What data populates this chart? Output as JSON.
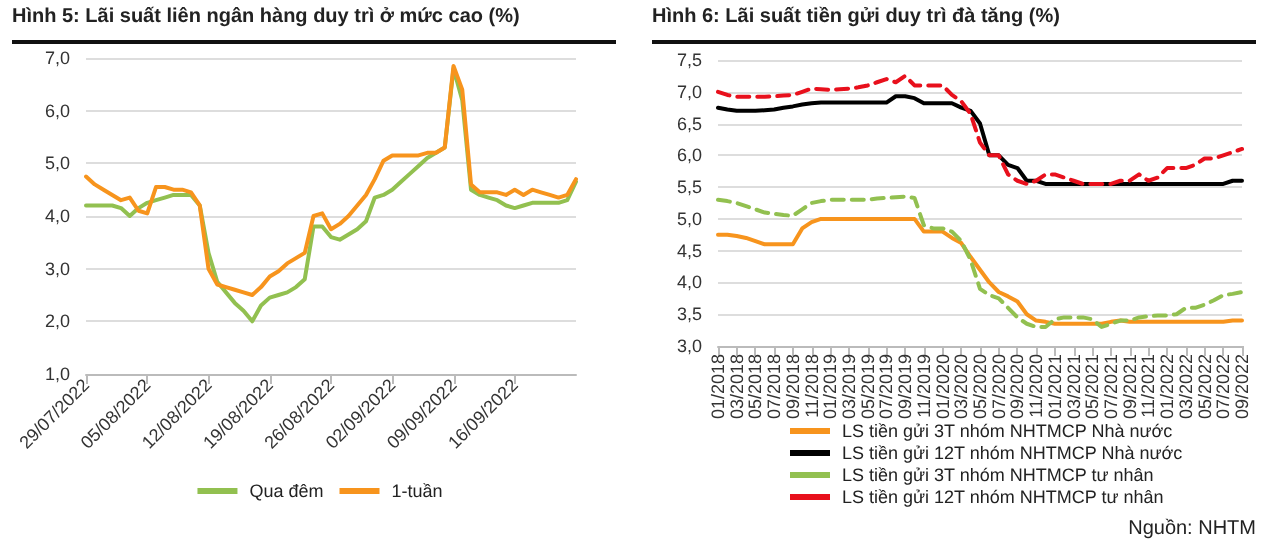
{
  "chart_data": [
    {
      "type": "line",
      "title": "Hình 5: Lãi suất liên ngân hàng duy trì ở mức cao (%)",
      "categories": [
        "29/07/2022",
        null,
        null,
        null,
        null,
        null,
        null,
        "05/08/2022",
        null,
        null,
        null,
        null,
        null,
        null,
        "12/08/2022",
        null,
        null,
        null,
        null,
        null,
        null,
        "19/08/2022",
        null,
        null,
        null,
        null,
        null,
        null,
        "26/08/2022",
        null,
        null,
        null,
        null,
        null,
        null,
        "02/09/2022",
        null,
        null,
        null,
        null,
        null,
        null,
        "09/09/2022",
        null,
        null,
        null,
        null,
        null,
        null,
        "16/09/2022",
        null,
        null,
        null,
        null,
        null,
        null,
        null
      ],
      "series": [
        {
          "name": "Qua đêm",
          "color": "#92c050",
          "values": [
            4.2,
            4.2,
            4.2,
            4.2,
            4.15,
            4.0,
            4.15,
            4.25,
            4.3,
            4.35,
            4.4,
            4.4,
            4.4,
            4.2,
            3.3,
            2.75,
            2.55,
            2.35,
            2.2,
            2.0,
            2.3,
            2.45,
            2.5,
            2.55,
            2.65,
            2.8,
            3.8,
            3.8,
            3.6,
            3.55,
            3.65,
            3.75,
            3.9,
            4.35,
            4.4,
            4.5,
            4.65,
            4.8,
            4.95,
            5.1,
            5.2,
            5.3,
            6.8,
            6.2,
            4.5,
            4.4,
            4.35,
            4.3,
            4.2,
            4.15,
            4.2,
            4.25,
            4.25,
            4.25,
            4.25,
            4.3,
            4.65
          ]
        },
        {
          "name": "1-tuần",
          "color": "#f7941d",
          "values": [
            4.75,
            4.6,
            4.5,
            4.4,
            4.3,
            4.35,
            4.1,
            4.05,
            4.55,
            4.55,
            4.5,
            4.5,
            4.45,
            4.2,
            3.0,
            2.7,
            2.65,
            2.6,
            2.55,
            2.5,
            2.65,
            2.85,
            2.95,
            3.1,
            3.2,
            3.3,
            4.0,
            4.05,
            3.75,
            3.85,
            4.0,
            4.2,
            4.4,
            4.7,
            5.05,
            5.15,
            5.15,
            5.15,
            5.15,
            5.2,
            5.2,
            5.3,
            6.85,
            6.4,
            4.6,
            4.45,
            4.45,
            4.45,
            4.4,
            4.5,
            4.4,
            4.5,
            4.45,
            4.4,
            4.35,
            4.4,
            4.7
          ]
        }
      ],
      "ylim": [
        1,
        7
      ],
      "yticks": [
        {
          "value": 1,
          "label": "1,0"
        },
        {
          "value": 2,
          "label": "2,0"
        },
        {
          "value": 3,
          "label": "3,0"
        },
        {
          "value": 4,
          "label": "4,0"
        },
        {
          "value": 5,
          "label": "5,0"
        },
        {
          "value": 6,
          "label": "6,0"
        },
        {
          "value": 7,
          "label": "7,0"
        }
      ],
      "grid": "y",
      "legend": "bottom",
      "marker": "none",
      "line_style": "solid"
    },
    {
      "type": "line",
      "title": "Hình 6: Lãi suất tiền gửi duy trì đà tăng (%)",
      "categories": [
        "01/2018",
        null,
        "03/2018",
        null,
        "05/2018",
        null,
        "07/2018",
        null,
        "09/2018",
        null,
        "11/2018",
        null,
        "01/2019",
        null,
        "03/2019",
        null,
        "05/2019",
        null,
        "07/2019",
        null,
        "09/2019",
        null,
        "11/2019",
        null,
        "01/2020",
        null,
        "03/2020",
        null,
        "05/2020",
        null,
        "07/2020",
        null,
        "09/2020",
        null,
        "11/2020",
        null,
        "01/2021",
        null,
        "03/2021",
        null,
        "05/2021",
        null,
        "07/2021",
        null,
        "09/2021",
        null,
        "11/2021",
        null,
        "01/2022",
        null,
        "03/2022",
        null,
        "05/2022",
        null,
        "07/2022",
        null,
        "09/2022"
      ],
      "series": [
        {
          "name": "LS tiền gửi 3T nhóm NHTMCP Nhà nước",
          "color": "#f7941d",
          "line_style": "solid",
          "values": [
            4.75,
            4.75,
            4.73,
            4.7,
            4.65,
            4.6,
            4.6,
            4.6,
            4.6,
            4.85,
            4.95,
            5.0,
            5.0,
            5.0,
            5.0,
            5.0,
            5.0,
            5.0,
            5.0,
            5.0,
            5.0,
            5.0,
            4.8,
            4.8,
            4.8,
            4.7,
            4.62,
            4.4,
            4.2,
            4.0,
            3.85,
            3.78,
            3.7,
            3.5,
            3.4,
            3.38,
            3.35,
            3.35,
            3.35,
            3.35,
            3.35,
            3.35,
            3.38,
            3.4,
            3.38,
            3.38,
            3.38,
            3.38,
            3.38,
            3.38,
            3.38,
            3.38,
            3.38,
            3.38,
            3.38,
            3.4,
            3.4
          ]
        },
        {
          "name": "LS tiền gửi 12T nhóm NHTMCP Nhà nước",
          "color": "#000000",
          "line_style": "solid",
          "values": [
            6.75,
            6.72,
            6.7,
            6.7,
            6.7,
            6.71,
            6.72,
            6.75,
            6.77,
            6.8,
            6.82,
            6.83,
            6.83,
            6.83,
            6.83,
            6.83,
            6.83,
            6.83,
            6.83,
            6.93,
            6.93,
            6.9,
            6.82,
            6.82,
            6.82,
            6.82,
            6.75,
            6.7,
            6.5,
            6.0,
            6.0,
            5.85,
            5.8,
            5.6,
            5.6,
            5.55,
            5.55,
            5.55,
            5.55,
            5.55,
            5.55,
            5.55,
            5.55,
            5.55,
            5.55,
            5.55,
            5.55,
            5.55,
            5.55,
            5.55,
            5.55,
            5.55,
            5.55,
            5.55,
            5.55,
            5.6,
            5.6
          ]
        },
        {
          "name": "LS tiền gửi 3T nhóm NHTMCP tư nhân",
          "color": "#92c050",
          "line_style": "dashed",
          "values": [
            5.3,
            5.28,
            5.25,
            5.2,
            5.15,
            5.1,
            5.08,
            5.06,
            5.05,
            5.15,
            5.25,
            5.28,
            5.3,
            5.3,
            5.3,
            5.3,
            5.3,
            5.32,
            5.33,
            5.34,
            5.35,
            5.33,
            4.9,
            4.85,
            4.85,
            4.8,
            4.65,
            4.35,
            3.9,
            3.8,
            3.75,
            3.6,
            3.45,
            3.35,
            3.3,
            3.3,
            3.42,
            3.45,
            3.45,
            3.45,
            3.42,
            3.3,
            3.35,
            3.4,
            3.4,
            3.45,
            3.47,
            3.48,
            3.48,
            3.5,
            3.6,
            3.6,
            3.65,
            3.72,
            3.8,
            3.82,
            3.85
          ]
        },
        {
          "name": "LS tiền gửi 12T nhóm NHTMCP tư nhân",
          "color": "#e8101c",
          "line_style": "dashed",
          "values": [
            7.0,
            6.95,
            6.92,
            6.92,
            6.92,
            6.92,
            6.93,
            6.94,
            6.95,
            7.0,
            7.05,
            7.04,
            7.03,
            7.04,
            7.05,
            7.07,
            7.1,
            7.15,
            7.2,
            7.15,
            7.25,
            7.1,
            7.1,
            7.1,
            7.1,
            6.95,
            6.85,
            6.65,
            6.2,
            6.0,
            6.0,
            5.7,
            5.6,
            5.55,
            5.6,
            5.7,
            5.7,
            5.65,
            5.6,
            5.55,
            5.55,
            5.55,
            5.55,
            5.6,
            5.6,
            5.7,
            5.6,
            5.65,
            5.8,
            5.8,
            5.8,
            5.85,
            5.95,
            5.95,
            6.0,
            6.05,
            6.1
          ]
        }
      ],
      "ylim": [
        3,
        7.5
      ],
      "yticks": [
        {
          "value": 3,
          "label": "3,0"
        },
        {
          "value": 3.5,
          "label": "3,5"
        },
        {
          "value": 4,
          "label": "4,0"
        },
        {
          "value": 4.5,
          "label": "4,5"
        },
        {
          "value": 5,
          "label": "5,0"
        },
        {
          "value": 5.5,
          "label": "5,5"
        },
        {
          "value": 6,
          "label": "6,0"
        },
        {
          "value": 6.5,
          "label": "6,5"
        },
        {
          "value": 7,
          "label": "7,0"
        },
        {
          "value": 7.5,
          "label": "7,5"
        }
      ],
      "grid": "y",
      "legend": "bottom",
      "marker": "none",
      "annotations": [
        "Nguồn: NHTM"
      ]
    }
  ]
}
